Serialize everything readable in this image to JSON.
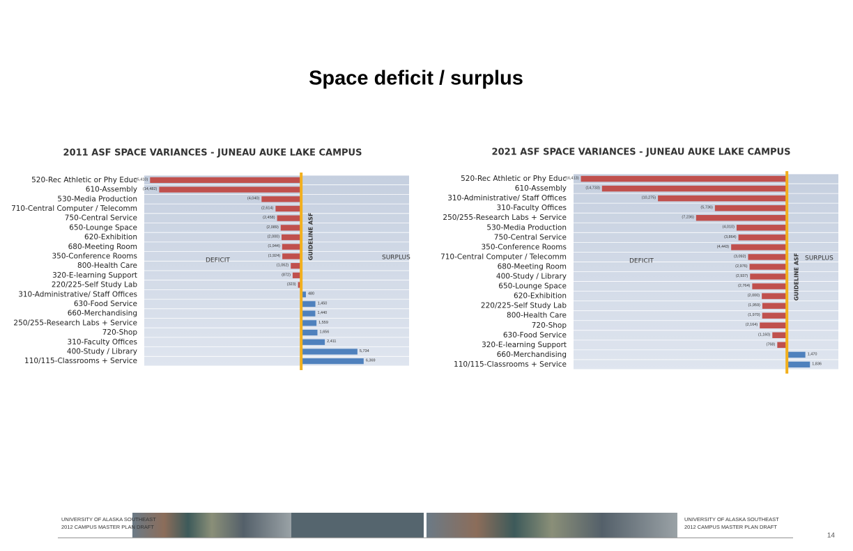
{
  "title": "Space deficit / surplus",
  "footer": {
    "left": [
      "UNIVERSITY OF ALASKA SOUTHEAST",
      "2012 CAMPUS MASTER PLAN DRAFT"
    ],
    "right": [
      "UNIVERSITY OF ALASKA SOUTHEAST",
      "2012 CAMPUS MASTER PLAN DRAFT"
    ]
  },
  "page_number": "14",
  "chart_data": [
    {
      "type": "bar",
      "orientation": "horizontal",
      "title": "2011 ASF SPACE VARIANCES - JUNEAU AUKE LAKE CAMPUS",
      "categories": [
        "520-Rec Athletic or Phy Educ",
        "610-Assembly",
        "530-Media Production",
        "710-Central Computer / Telecomm",
        "750-Central Service",
        "650-Lounge Space",
        "620-Exhibition",
        "680-Meeting Room",
        "350-Conference Rooms",
        "800-Health Care",
        "320-E-learning Support",
        "220/225-Self Study Lab",
        "310-Administrative/ Staff Offices",
        "630-Food Service",
        "660-Merchandising",
        "250/255-Research Labs + Service",
        "720-Shop",
        "310-Faculty Offices",
        "400-Study / Library",
        "110/115-Classrooms + Service"
      ],
      "values": [
        -15410,
        -14482,
        -4040,
        -2614,
        -2458,
        -2089,
        -2000,
        -1944,
        -1924,
        -1062,
        -872,
        -323,
        480,
        1450,
        1440,
        1559,
        1656,
        2411,
        5734,
        6369
      ],
      "value_labels": [
        "(15,410)",
        "(14,482)",
        "(4,040)",
        "(2,614)",
        "(2,458)",
        "(2,089)",
        "(2,000)",
        "(1,944)",
        "(1,924)",
        "(1,062)",
        "(872)",
        "(323)",
        "480",
        "1,450",
        "1,440",
        "1,559",
        "1,656",
        "2,411",
        "5,734",
        "6,369"
      ],
      "negative_color": "#c0504d",
      "positive_color": "#4f81bd",
      "guideline_color": "#f2b01e",
      "xlim": [
        -16000,
        11000
      ],
      "annotations": {
        "deficit": "DEFICIT",
        "surplus": "SURPLUS",
        "guideline": "GUIDELINE ASF"
      }
    },
    {
      "type": "bar",
      "orientation": "horizontal",
      "title": "2021 ASF SPACE VARIANCES - JUNEAU AUKE LAKE CAMPUS",
      "categories": [
        "520-Rec Athletic or Phy Educ",
        "610-Assembly",
        "310-Administrative/ Staff Offices",
        "310-Faculty Offices",
        "250/255-Research Labs + Service",
        "530-Media Production",
        "750-Central Service",
        "350-Conference Rooms",
        "710-Central Computer / Telecomm",
        "680-Meeting Room",
        "400-Study / Library",
        "650-Lounge Space",
        "620-Exhibition",
        "220/225-Self Study Lab",
        "800-Health Care",
        "720-Shop",
        "630-Food Service",
        "320-E-learning Support",
        "660-Merchandising",
        "110/115-Classrooms + Service"
      ],
      "values": [
        -16413,
        -14733,
        -10275,
        -5736,
        -7236,
        -4010,
        -3864,
        -4443,
        -3092,
        -2976,
        -2937,
        -2764,
        -2000,
        -1959,
        -1970,
        -2164,
        -1160,
        -768,
        1470,
        1836
      ],
      "value_labels": [
        "(16,413)",
        "(14,733)",
        "(10,275)",
        "(5,736)",
        "(7,236)",
        "(4,010)",
        "(3,864)",
        "(4,443)",
        "(3,092)",
        "(2,976)",
        "(2,937)",
        "(2,764)",
        "(2,000)",
        "(1,959)",
        "(1,970)",
        "(2,164)",
        "(1,160)",
        "(768)",
        "1,470",
        "1,836"
      ],
      "negative_color": "#c0504d",
      "positive_color": "#4f81bd",
      "guideline_color": "#f2b01e",
      "xlim": [
        -17000,
        4100
      ],
      "annotations": {
        "deficit": "DEFICIT",
        "surplus": "SURPLUS",
        "guideline": "GUIDELINE ASF"
      }
    }
  ]
}
